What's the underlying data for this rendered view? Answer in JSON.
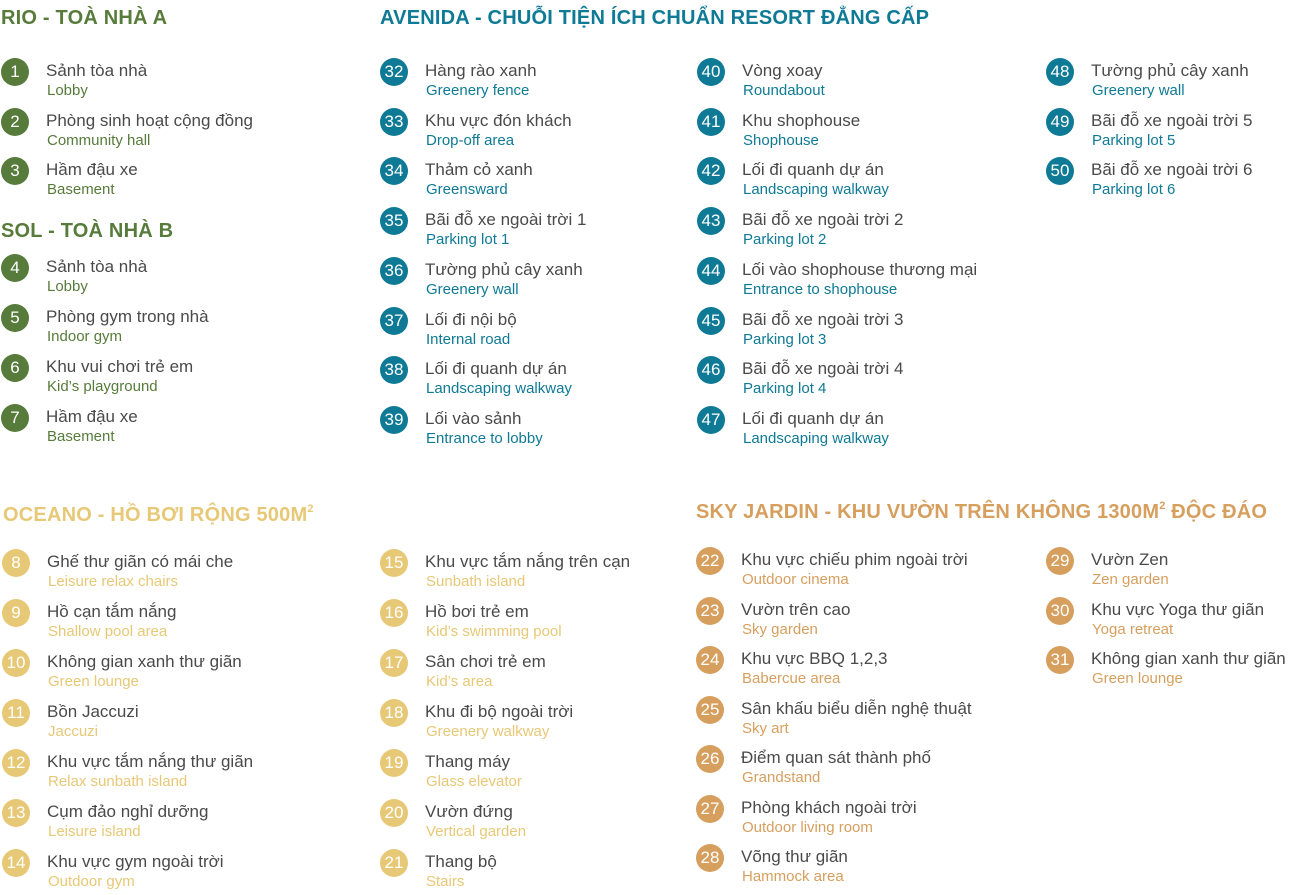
{
  "colors": {
    "green": "#567b3a",
    "teal": "#0e7a95",
    "yellow": "#e7c876",
    "orange": "#d69f5e",
    "body_text": "#4a4a4a"
  },
  "rio": {
    "title": "RIO - TOÀ NHÀ A",
    "items": [
      {
        "num": "1",
        "vn": "Sảnh tòa nhà",
        "en": "Lobby"
      },
      {
        "num": "2",
        "vn": "Phòng sinh hoạt cộng đồng",
        "en": "Community hall"
      },
      {
        "num": "3",
        "vn": "Hầm đậu xe",
        "en": "Basement"
      }
    ]
  },
  "sol": {
    "title": "SOL - TOÀ NHÀ B",
    "items": [
      {
        "num": "4",
        "vn": "Sảnh tòa nhà",
        "en": "Lobby"
      },
      {
        "num": "5",
        "vn": "Phòng gym trong nhà",
        "en": "Indoor gym"
      },
      {
        "num": "6",
        "vn": "Khu vui chơi trẻ em",
        "en": "Kid’s playground"
      },
      {
        "num": "7",
        "vn": "Hầm đậu xe",
        "en": "Basement"
      }
    ]
  },
  "avenida": {
    "title": "AVENIDA - CHUỖI TIỆN ÍCH CHUẨN RESORT ĐẲNG CẤP",
    "col1": [
      {
        "num": "32",
        "vn": "Hàng rào xanh",
        "en": "Greenery fence"
      },
      {
        "num": "33",
        "vn": "Khu vực đón khách",
        "en": "Drop-off area"
      },
      {
        "num": "34",
        "vn": "Thảm cỏ xanh",
        "en": "Greensward"
      },
      {
        "num": "35",
        "vn": "Bãi đỗ xe ngoài trời 1",
        "en": "Parking lot 1"
      },
      {
        "num": "36",
        "vn": "Tường phủ cây xanh",
        "en": "Greenery wall"
      },
      {
        "num": "37",
        "vn": "Lối đi nội bộ",
        "en": "Internal road"
      },
      {
        "num": "38",
        "vn": "Lối đi quanh dự án",
        "en": "Landscaping walkway"
      },
      {
        "num": "39",
        "vn": "Lối vào sảnh",
        "en": "Entrance to lobby"
      }
    ],
    "col2": [
      {
        "num": "40",
        "vn": "Vòng xoay",
        "en": "Roundabout"
      },
      {
        "num": "41",
        "vn": "Khu shophouse",
        "en": "Shophouse"
      },
      {
        "num": "42",
        "vn": "Lối đi quanh dự án",
        "en": "Landscaping walkway"
      },
      {
        "num": "43",
        "vn": "Bãi đỗ xe ngoài trời 2",
        "en": "Parking lot 2"
      },
      {
        "num": "44",
        "vn": "Lối vào shophouse thương mại",
        "en": "Entrance to shophouse"
      },
      {
        "num": "45",
        "vn": "Bãi đỗ xe ngoài trời 3",
        "en": "Parking lot 3"
      },
      {
        "num": "46",
        "vn": "Bãi đỗ xe ngoài trời 4",
        "en": "Parking lot 4"
      },
      {
        "num": "47",
        "vn": "Lối đi quanh dự án",
        "en": "Landscaping walkway"
      }
    ],
    "col3": [
      {
        "num": "48",
        "vn": "Tường phủ cây xanh",
        "en": "Greenery wall"
      },
      {
        "num": "49",
        "vn": "Bãi đỗ xe ngoài trời 5",
        "en": "Parking lot 5"
      },
      {
        "num": "50",
        "vn": "Bãi đỗ xe ngoài trời 6",
        "en": "Parking lot 6"
      }
    ]
  },
  "oceano": {
    "title": "OCEANO - HỒ BƠI RỘNG 500M",
    "title_sup": "2",
    "col1": [
      {
        "num": "8",
        "vn": "Ghế thư giãn có mái che",
        "en": "Leisure relax chairs"
      },
      {
        "num": "9",
        "vn": "Hồ cạn tắm nắng",
        "en": "Shallow pool area"
      },
      {
        "num": "10",
        "vn": "Không gian xanh thư giãn",
        "en": "Green lounge"
      },
      {
        "num": "11",
        "vn": "Bồn Jaccuzi",
        "en": "Jaccuzi"
      },
      {
        "num": "12",
        "vn": "Khu vực tắm nắng thư giãn",
        "en": "Relax sunbath island"
      },
      {
        "num": "13",
        "vn": "Cụm đảo nghỉ dưỡng",
        "en": "Leisure island"
      },
      {
        "num": "14",
        "vn": "Khu vực gym ngoài trời",
        "en": "Outdoor gym"
      }
    ],
    "col2": [
      {
        "num": "15",
        "vn": "Khu vực tắm nắng trên cạn",
        "en": "Sunbath island"
      },
      {
        "num": "16",
        "vn": "Hồ bơi trẻ em",
        "en": "Kid’s swimming pool"
      },
      {
        "num": "17",
        "vn": "Sân chơi trẻ em",
        "en": "Kid’s area"
      },
      {
        "num": "18",
        "vn": "Khu đi bộ ngoài trời",
        "en": "Greenery walkway"
      },
      {
        "num": "19",
        "vn": "Thang máy",
        "en": "Glass elevator"
      },
      {
        "num": "20",
        "vn": "Vườn đứng",
        "en": "Vertical garden"
      },
      {
        "num": "21",
        "vn": "Thang bộ",
        "en": "Stairs"
      }
    ]
  },
  "sky": {
    "title": "SKY JARDIN - KHU VƯỜN TRÊN KHÔNG 1300M",
    "title_sup": "2",
    "title_tail": " ĐỘC ĐÁO",
    "col1": [
      {
        "num": "22",
        "vn": "Khu vực chiếu phim ngoài trời",
        "en": "Outdoor cinema"
      },
      {
        "num": "23",
        "vn": "Vườn trên cao",
        "en": "Sky garden"
      },
      {
        "num": "24",
        "vn": "Khu vực BBQ 1,2,3",
        "en": "Babercue area"
      },
      {
        "num": "25",
        "vn": "Sân khấu biểu diễn nghệ thuật",
        "en": "Sky art"
      },
      {
        "num": "26",
        "vn": "Điểm quan sát thành phố",
        "en": "Grandstand"
      },
      {
        "num": "27",
        "vn": "Phòng khách ngoài trời",
        "en": "Outdoor living room"
      },
      {
        "num": "28",
        "vn": "Võng thư giãn",
        "en": "Hammock area"
      }
    ],
    "col2": [
      {
        "num": "29",
        "vn": "Vườn Zen",
        "en": "Zen garden"
      },
      {
        "num": "30",
        "vn": "Khu vực Yoga thư giãn",
        "en": "Yoga retreat"
      },
      {
        "num": "31",
        "vn": "Không gian xanh thư giãn",
        "en": "Green lounge"
      }
    ]
  }
}
